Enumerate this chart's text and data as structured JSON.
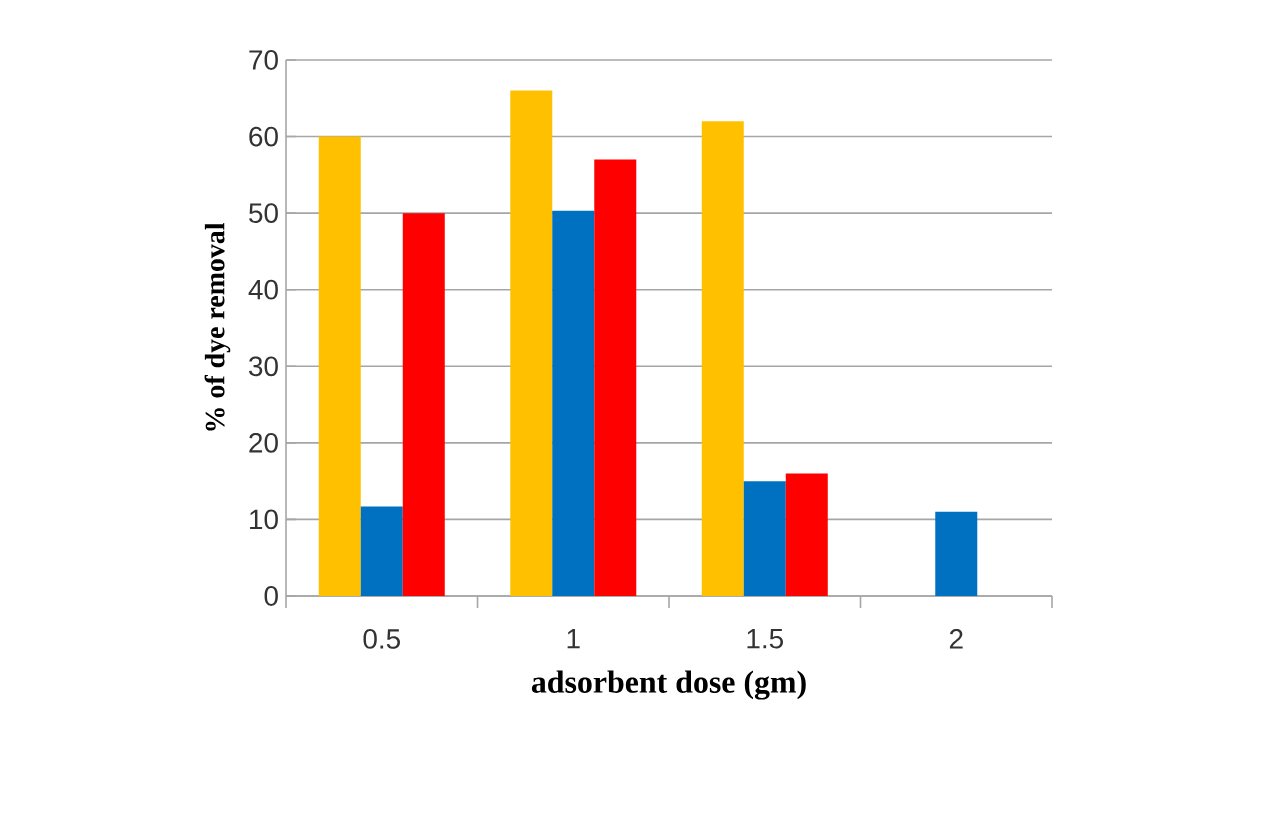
{
  "chart_data": {
    "type": "bar",
    "xlabel": "adsorbent dose (gm)",
    "ylabel": "% of dye removal",
    "categories": [
      "0.5",
      "1",
      "1.5",
      "2"
    ],
    "series": [
      {
        "color": "#ffc000",
        "values": [
          60,
          66,
          62,
          null
        ]
      },
      {
        "color": "#0070c0",
        "values": [
          11.7,
          50.3,
          15,
          11
        ]
      },
      {
        "color": "#ff0000",
        "values": [
          50,
          57,
          16,
          null
        ]
      }
    ],
    "ylim": [
      0,
      70
    ],
    "yticks": [
      0,
      10,
      20,
      30,
      40,
      50,
      60,
      70
    ],
    "grid": "y"
  }
}
